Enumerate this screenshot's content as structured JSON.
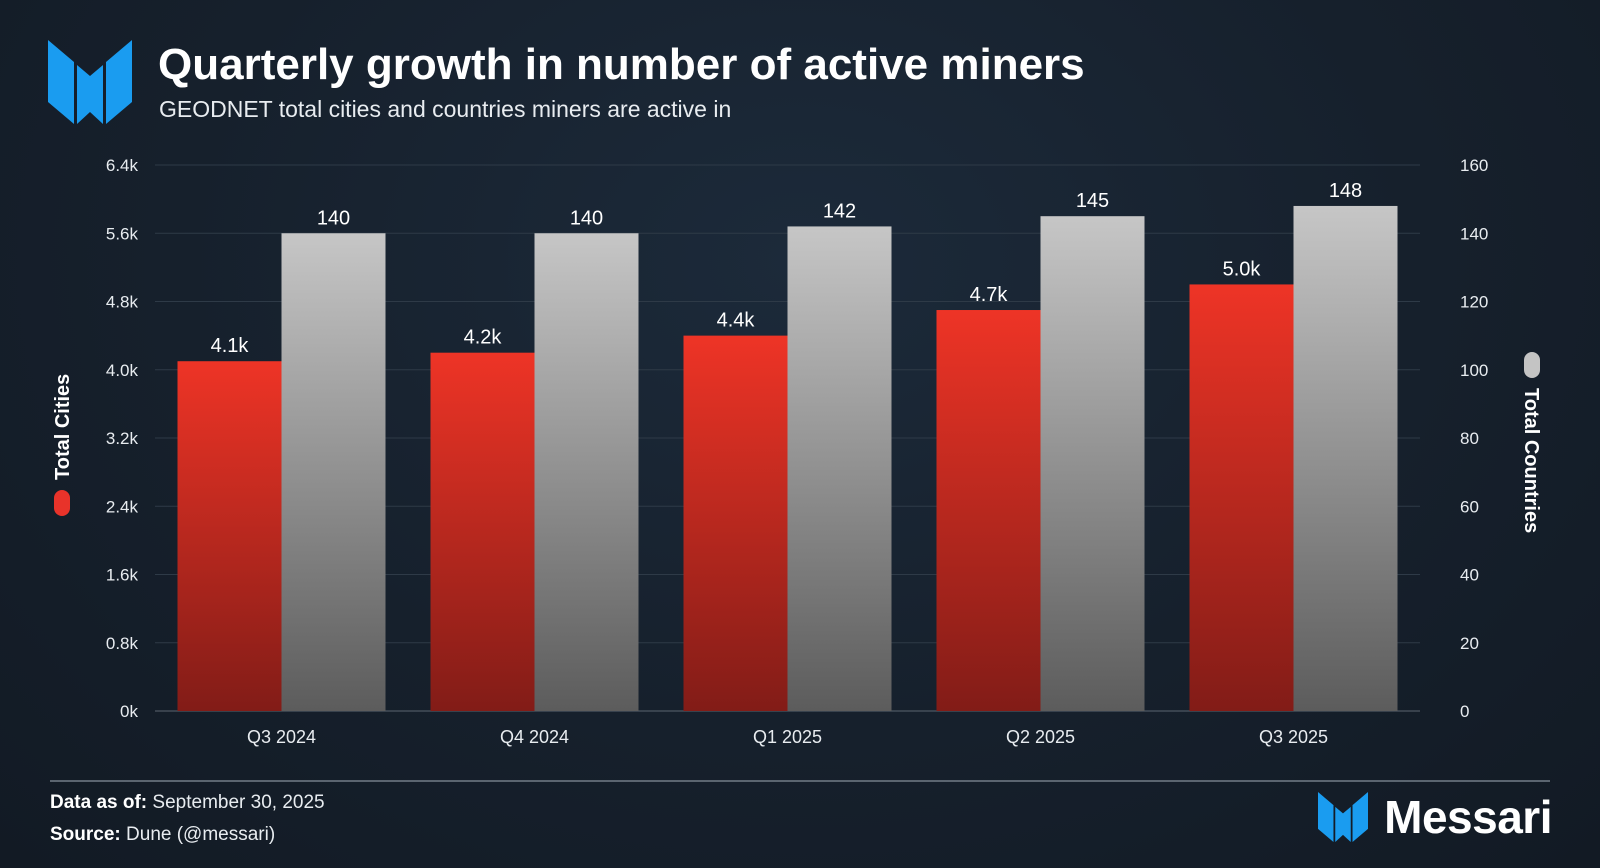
{
  "header": {
    "title": "Quarterly growth in number of active miners",
    "subtitle": "GEODNET total cities and countries miners are active in"
  },
  "colors": {
    "cities": "#e8332a",
    "countries": "#c4c4c4",
    "brand": "#1a9cf0"
  },
  "icons": {
    "logo": "messari-logo-icon",
    "legend_cities": "pill-marker-icon",
    "legend_countries": "pill-marker-icon"
  },
  "chart_data": {
    "type": "bar",
    "categories": [
      "Q3 2024",
      "Q4 2024",
      "Q1 2025",
      "Q2 2025",
      "Q3 2025"
    ],
    "series": [
      {
        "name": "Total Cities",
        "axis": "left",
        "values": [
          4.1,
          4.2,
          4.4,
          4.7,
          5.0
        ],
        "labels": [
          "4.1k",
          "4.2k",
          "4.4k",
          "4.7k",
          "5.0k"
        ]
      },
      {
        "name": "Total Countries",
        "axis": "right",
        "values": [
          140,
          140,
          142,
          145,
          148
        ],
        "labels": [
          "140",
          "140",
          "142",
          "145",
          "148"
        ]
      }
    ],
    "y_left": {
      "label": "Total Cities",
      "ylim": [
        0,
        6.4
      ],
      "ticks": [
        0,
        0.8,
        1.6,
        2.4,
        3.2,
        4.0,
        4.8,
        5.6,
        6.4
      ],
      "tick_labels": [
        "0k",
        "0.8k",
        "1.6k",
        "2.4k",
        "3.2k",
        "4.0k",
        "4.8k",
        "5.6k",
        "6.4k"
      ]
    },
    "y_right": {
      "label": "Total Countries",
      "ylim": [
        0,
        160
      ],
      "ticks": [
        0,
        20,
        40,
        60,
        80,
        100,
        120,
        140,
        160
      ],
      "tick_labels": [
        "0",
        "20",
        "40",
        "60",
        "80",
        "100",
        "120",
        "140",
        "160"
      ]
    },
    "grid": true
  },
  "footer": {
    "date_label": "Data as of:",
    "date_value": "September 30, 2025",
    "source_label": "Source:",
    "source_value": "Dune (@messari)",
    "brand_name": "Messari"
  }
}
